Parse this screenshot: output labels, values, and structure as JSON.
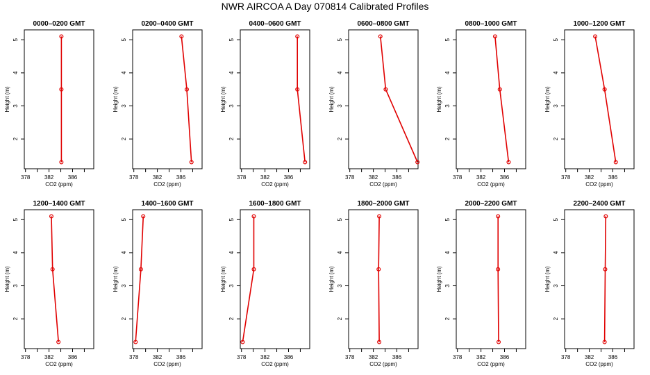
{
  "title": "NWR AIRCOA A  Day 070814  Calibrated Profiles",
  "colors": {
    "series": "#e00000",
    "axis": "#000000"
  },
  "chart_data": [
    {
      "type": "line",
      "title": "0000–0200 GMT",
      "xlabel": "CO2 (ppm)",
      "ylabel": "Height (m)",
      "xlim": [
        377.8,
        389.6
      ],
      "ylim": [
        1.1,
        5.3
      ],
      "xticks": [
        378,
        382,
        386
      ],
      "yticks": [
        2,
        3,
        4,
        5
      ],
      "x": [
        384.1,
        384.1,
        384.1
      ],
      "y": [
        5.1,
        3.5,
        1.3
      ]
    },
    {
      "type": "line",
      "title": "0200–0400 GMT",
      "xlabel": "CO2 (ppm)",
      "ylabel": "Height (m)",
      "xlim": [
        377.8,
        389.6
      ],
      "ylim": [
        1.1,
        5.3
      ],
      "xticks": [
        378,
        382,
        386
      ],
      "yticks": [
        2,
        3,
        4,
        5
      ],
      "x": [
        386.1,
        387.0,
        387.8
      ],
      "y": [
        5.1,
        3.5,
        1.3
      ]
    },
    {
      "type": "line",
      "title": "0400–0600 GMT",
      "xlabel": "CO2 (ppm)",
      "ylabel": "Height (m)",
      "xlim": [
        377.8,
        389.6
      ],
      "ylim": [
        1.1,
        5.3
      ],
      "xticks": [
        378,
        382,
        386
      ],
      "yticks": [
        2,
        3,
        4,
        5
      ],
      "x": [
        387.5,
        387.5,
        388.8
      ],
      "y": [
        5.1,
        3.5,
        1.3
      ]
    },
    {
      "type": "line",
      "title": "0600–0800 GMT",
      "xlabel": "CO2 (ppm)",
      "ylabel": "Height (m)",
      "xlim": [
        377.8,
        389.6
      ],
      "ylim": [
        1.1,
        5.3
      ],
      "xticks": [
        378,
        382,
        386
      ],
      "yticks": [
        2,
        3,
        4,
        5
      ],
      "x": [
        383.2,
        384.1,
        389.5
      ],
      "y": [
        5.1,
        3.5,
        1.3
      ]
    },
    {
      "type": "line",
      "title": "0800–1000 GMT",
      "xlabel": "CO2 (ppm)",
      "ylabel": "Height (m)",
      "xlim": [
        377.8,
        389.6
      ],
      "ylim": [
        1.1,
        5.3
      ],
      "xticks": [
        378,
        382,
        386
      ],
      "yticks": [
        2,
        3,
        4,
        5
      ],
      "x": [
        384.4,
        385.2,
        386.7
      ],
      "y": [
        5.1,
        3.5,
        1.3
      ]
    },
    {
      "type": "line",
      "title": "1000–1200 GMT",
      "xlabel": "CO2 (ppm)",
      "ylabel": "Height (m)",
      "xlim": [
        377.8,
        389.6
      ],
      "ylim": [
        1.1,
        5.3
      ],
      "xticks": [
        378,
        382,
        386
      ],
      "yticks": [
        2,
        3,
        4,
        5
      ],
      "x": [
        383.0,
        384.6,
        386.5
      ],
      "y": [
        5.1,
        3.5,
        1.3
      ]
    },
    {
      "type": "line",
      "title": "1200–1400 GMT",
      "xlabel": "CO2 (ppm)",
      "ylabel": "Height (m)",
      "xlim": [
        377.8,
        389.6
      ],
      "ylim": [
        1.1,
        5.3
      ],
      "xticks": [
        378,
        382,
        386
      ],
      "yticks": [
        2,
        3,
        4,
        5
      ],
      "x": [
        382.4,
        382.6,
        383.6
      ],
      "y": [
        5.1,
        3.5,
        1.3
      ]
    },
    {
      "type": "line",
      "title": "1400–1600 GMT",
      "xlabel": "CO2 (ppm)",
      "ylabel": "Height (m)",
      "xlim": [
        377.8,
        389.6
      ],
      "ylim": [
        1.1,
        5.3
      ],
      "xticks": [
        378,
        382,
        386
      ],
      "yticks": [
        2,
        3,
        4,
        5
      ],
      "x": [
        379.6,
        379.2,
        378.3
      ],
      "y": [
        5.1,
        3.5,
        1.3
      ]
    },
    {
      "type": "line",
      "title": "1600–1800 GMT",
      "xlabel": "CO2 (ppm)",
      "ylabel": "Height (m)",
      "xlim": [
        377.8,
        389.6
      ],
      "ylim": [
        1.1,
        5.3
      ],
      "xticks": [
        378,
        382,
        386
      ],
      "yticks": [
        2,
        3,
        4,
        5
      ],
      "x": [
        380.1,
        380.1,
        378.2
      ],
      "y": [
        5.1,
        3.5,
        1.3
      ]
    },
    {
      "type": "line",
      "title": "1800–2000 GMT",
      "xlabel": "CO2 (ppm)",
      "ylabel": "Height (m)",
      "xlim": [
        377.8,
        389.6
      ],
      "ylim": [
        1.1,
        5.3
      ],
      "xticks": [
        378,
        382,
        386
      ],
      "yticks": [
        2,
        3,
        4,
        5
      ],
      "x": [
        383.0,
        382.9,
        383.0
      ],
      "y": [
        5.1,
        3.5,
        1.3
      ]
    },
    {
      "type": "line",
      "title": "2000–2200 GMT",
      "xlabel": "CO2 (ppm)",
      "ylabel": "Height (m)",
      "xlim": [
        377.8,
        389.6
      ],
      "ylim": [
        1.1,
        5.3
      ],
      "xticks": [
        378,
        382,
        386
      ],
      "yticks": [
        2,
        3,
        4,
        5
      ],
      "x": [
        384.9,
        384.9,
        385.0
      ],
      "y": [
        5.1,
        3.5,
        1.3
      ]
    },
    {
      "type": "line",
      "title": "2200–2400 GMT",
      "xlabel": "CO2 (ppm)",
      "ylabel": "Height (m)",
      "xlim": [
        377.8,
        389.6
      ],
      "ylim": [
        1.1,
        5.3
      ],
      "xticks": [
        378,
        382,
        386
      ],
      "yticks": [
        2,
        3,
        4,
        5
      ],
      "x": [
        384.8,
        384.7,
        384.6
      ],
      "y": [
        5.1,
        3.5,
        1.3
      ]
    }
  ]
}
